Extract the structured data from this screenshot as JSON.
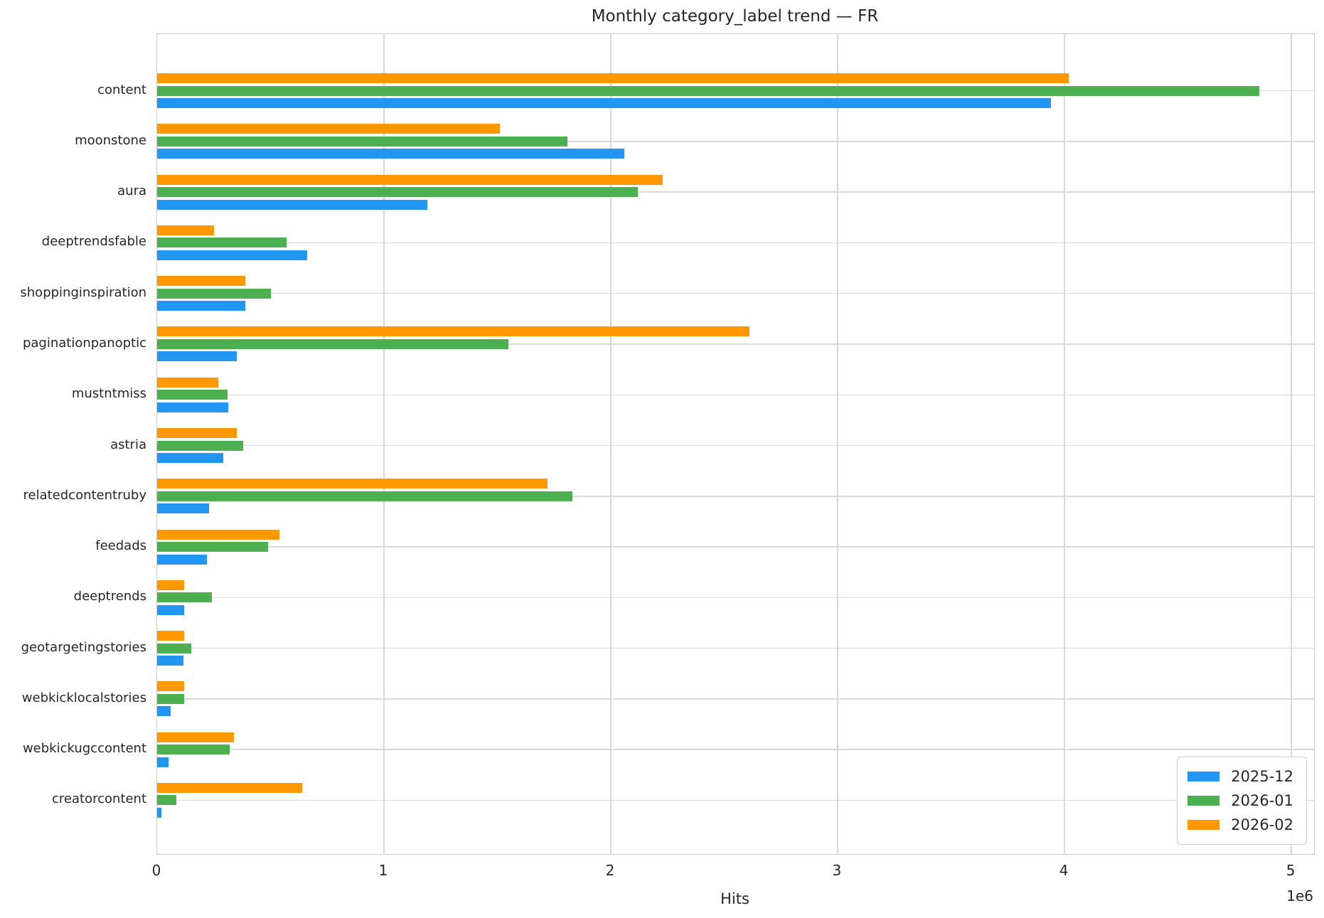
{
  "chart_data": {
    "type": "bar",
    "orientation": "horizontal",
    "title": "Monthly category_label trend — FR",
    "xlabel": "Hits",
    "ylabel": "",
    "x_offset_label": "1e6",
    "xlim": [
      0,
      5100000
    ],
    "grid": true,
    "legend_position": "lower right",
    "x_ticks": [
      {
        "value": 0,
        "label": "0"
      },
      {
        "value": 1000000,
        "label": "1"
      },
      {
        "value": 2000000,
        "label": "2"
      },
      {
        "value": 3000000,
        "label": "3"
      },
      {
        "value": 4000000,
        "label": "4"
      },
      {
        "value": 5000000,
        "label": "5"
      }
    ],
    "categories": [
      "content",
      "moonstone",
      "aura",
      "deeptrendsfable",
      "shoppinginspiration",
      "paginationpanoptic",
      "mustntmiss",
      "astria",
      "relatedcontentruby",
      "feedads",
      "deeptrends",
      "geotargetingstories",
      "webkicklocalstories",
      "webkickugccontent",
      "creatorcontent"
    ],
    "series": [
      {
        "name": "2025-12",
        "color": "#2196F3",
        "values": [
          3940000,
          2060000,
          1190000,
          660000,
          390000,
          350000,
          315000,
          290000,
          230000,
          220000,
          120000,
          115000,
          60000,
          50000,
          20000
        ]
      },
      {
        "name": "2026-01",
        "color": "#4CAF50",
        "values": [
          4860000,
          1810000,
          2120000,
          570000,
          500000,
          1550000,
          310000,
          380000,
          1830000,
          490000,
          240000,
          150000,
          120000,
          320000,
          85000
        ]
      },
      {
        "name": "2026-02",
        "color": "#FF9800",
        "values": [
          4020000,
          1510000,
          2230000,
          250000,
          390000,
          2610000,
          270000,
          350000,
          1720000,
          540000,
          120000,
          120000,
          120000,
          340000,
          640000
        ]
      }
    ]
  }
}
